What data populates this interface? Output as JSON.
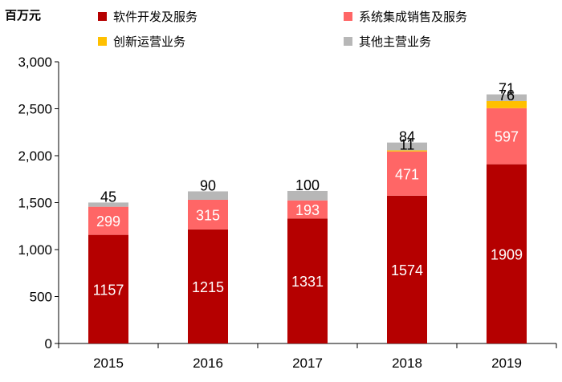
{
  "chart_data": {
    "type": "bar",
    "stacked": true,
    "unit_label": "百万元",
    "categories": [
      "2015",
      "2016",
      "2017",
      "2018",
      "2019"
    ],
    "ylim": [
      0,
      3000
    ],
    "yticks": [
      "0",
      "500",
      "1,000",
      "1,500",
      "2,000",
      "2,500",
      "3,000"
    ],
    "ytick_values": [
      0,
      500,
      1000,
      1500,
      2000,
      2500,
      3000
    ],
    "legend_position": "top",
    "grid": false,
    "series": [
      {
        "name": "软件开发及服务",
        "color": "#b50000",
        "label_color": "#ffffff",
        "values": [
          1157,
          1215,
          1331,
          1574,
          1909
        ]
      },
      {
        "name": "系统集成销售及服务",
        "color": "#ff6666",
        "label_color": "#ffffff",
        "values": [
          299,
          315,
          193,
          471,
          597
        ]
      },
      {
        "name": "创新运营业务",
        "color": "#ffc000",
        "label_color": "#000000",
        "values": [
          null,
          null,
          null,
          11,
          76
        ]
      },
      {
        "name": "其他主营业务",
        "color": "#b7b7b7",
        "label_color": "#000000",
        "values": [
          45,
          90,
          100,
          84,
          71
        ]
      }
    ]
  }
}
